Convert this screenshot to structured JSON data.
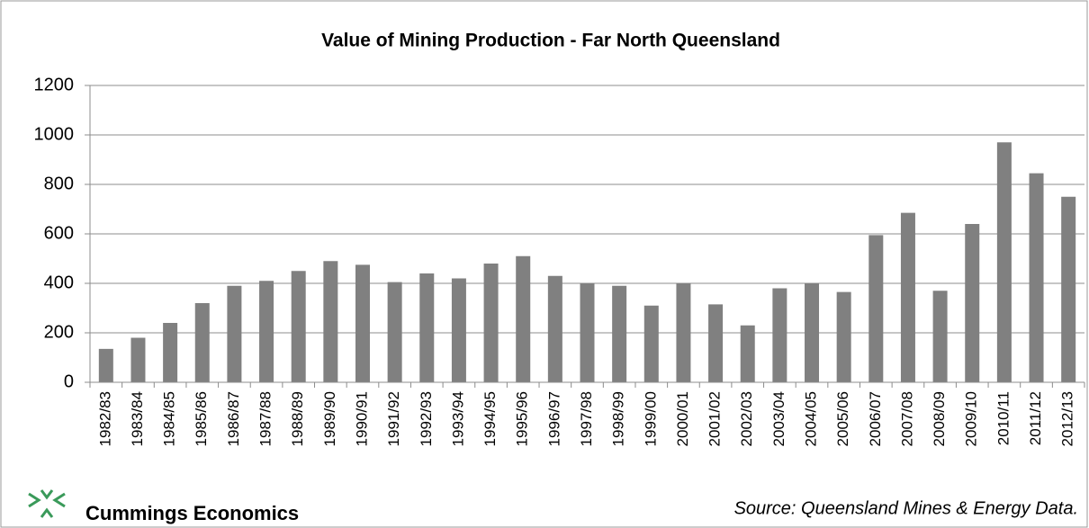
{
  "chart_data": {
    "type": "bar",
    "title": "Value of Mining Production - Far North Queensland",
    "categories": [
      "1982/83",
      "1983/84",
      "1984/85",
      "1985/86",
      "1986/87",
      "1987/88",
      "1988/89",
      "1989/90",
      "1990/91",
      "1991/92",
      "1992/93",
      "1993/94",
      "1994/95",
      "1995/96",
      "1996/97",
      "1997/98",
      "1998/99",
      "1999/00",
      "2000/01",
      "2001/02",
      "2002/03",
      "2003/04",
      "2004/05",
      "2005/06",
      "2006/07",
      "2007/08",
      "2008/09",
      "2009/10",
      "2010/11",
      "2011/12",
      "2012/13"
    ],
    "values": [
      135,
      180,
      240,
      320,
      390,
      410,
      450,
      490,
      475,
      405,
      440,
      420,
      480,
      510,
      430,
      400,
      390,
      310,
      400,
      315,
      230,
      380,
      400,
      365,
      595,
      685,
      370,
      640,
      970,
      845,
      750
    ],
    "color": "#808080",
    "ylim": [
      0,
      1200
    ],
    "yticks": [
      0,
      200,
      400,
      600,
      800,
      1000,
      1200
    ],
    "grid": true
  },
  "footer": {
    "brand": "Cummings Economics",
    "source": "Source:  Queensland Mines & Energy Data."
  }
}
